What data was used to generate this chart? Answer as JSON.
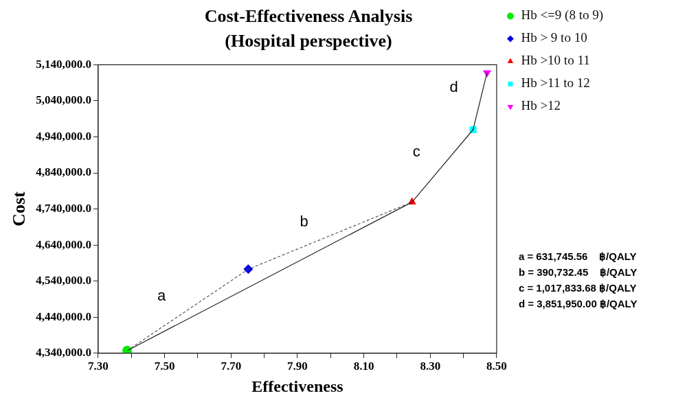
{
  "chart_data": {
    "type": "scatter",
    "title": "Cost-Effectiveness Analysis",
    "subtitle": "(Hospital perspective)",
    "xlabel": "Effectiveness",
    "ylabel": "Cost",
    "xlim": [
      7.3,
      8.5
    ],
    "xticks": [
      {
        "value": 7.3,
        "label": "7.30"
      },
      {
        "value": 7.4,
        "label": null
      },
      {
        "value": 7.5,
        "label": "7.50"
      },
      {
        "value": 7.6,
        "label": null
      },
      {
        "value": 7.7,
        "label": "7.70"
      },
      {
        "value": 7.8,
        "label": null
      },
      {
        "value": 7.9,
        "label": "7.90"
      },
      {
        "value": 8.0,
        "label": null
      },
      {
        "value": 8.1,
        "label": "8.10"
      },
      {
        "value": 8.2,
        "label": null
      },
      {
        "value": 8.3,
        "label": "8.30"
      },
      {
        "value": 8.4,
        "label": null
      },
      {
        "value": 8.5,
        "label": "8.50"
      }
    ],
    "ylim": [
      4340000,
      5140000
    ],
    "yticks": [
      {
        "value": 4340000,
        "label": "4,340,000.0"
      },
      {
        "value": 4440000,
        "label": "4,440,000.0"
      },
      {
        "value": 4540000,
        "label": "4,540,000.0"
      },
      {
        "value": 4640000,
        "label": "4,640,000.0"
      },
      {
        "value": 4740000,
        "label": "4,740,000.0"
      },
      {
        "value": 4840000,
        "label": "4,840,000.0"
      },
      {
        "value": 4940000,
        "label": "4,940,000.0"
      },
      {
        "value": 5040000,
        "label": "5,040,000.0"
      },
      {
        "value": 5140000,
        "label": "5,140,000.0"
      }
    ],
    "grid": false,
    "legend": "right",
    "series": [
      {
        "type": "line",
        "color": "#555555",
        "line_style": "dashed",
        "marker": "none",
        "x": [
          7.387,
          7.752,
          8.245
        ],
        "values": [
          4347000,
          4573000,
          4759000
        ]
      },
      {
        "type": "line",
        "color": "#222222",
        "line_style": "solid",
        "marker": "none",
        "x": [
          7.387,
          8.245,
          8.429,
          8.471
        ],
        "values": [
          4347000,
          4759000,
          4960000,
          5118000
        ]
      },
      {
        "type": "scatter",
        "name": "Hb <=9 (8 to 9)",
        "color": "#00ee00",
        "marker": "circle",
        "x": [
          7.387
        ],
        "values": [
          4347000
        ]
      },
      {
        "type": "scatter",
        "name": "Hb > 9 to 10",
        "color": "#0000ee",
        "marker": "diamond",
        "x": [
          7.752
        ],
        "values": [
          4573000
        ]
      },
      {
        "type": "scatter",
        "name": "Hb >10 to 11",
        "color": "#ff0000",
        "marker": "triangle",
        "x": [
          8.245
        ],
        "values": [
          4759000
        ]
      },
      {
        "type": "scatter",
        "name": "Hb >11 to 12",
        "color": "#00ffff",
        "marker": "square",
        "x": [
          8.429
        ],
        "values": [
          4960000
        ]
      },
      {
        "type": "scatter",
        "name": "Hb >12",
        "color": "#ff00ff",
        "marker": "triangle-down",
        "x": [
          8.471
        ],
        "values": [
          5118000
        ]
      }
    ],
    "annotations": [
      "a",
      "b",
      "c",
      "d",
      "a = 631,745.56    ฿/QALY",
      "b = 390,732.45    ฿/QALY",
      "c = 1,017,833.68 ฿/QALY",
      "d = 3,851,950.00 ฿/QALY"
    ]
  }
}
